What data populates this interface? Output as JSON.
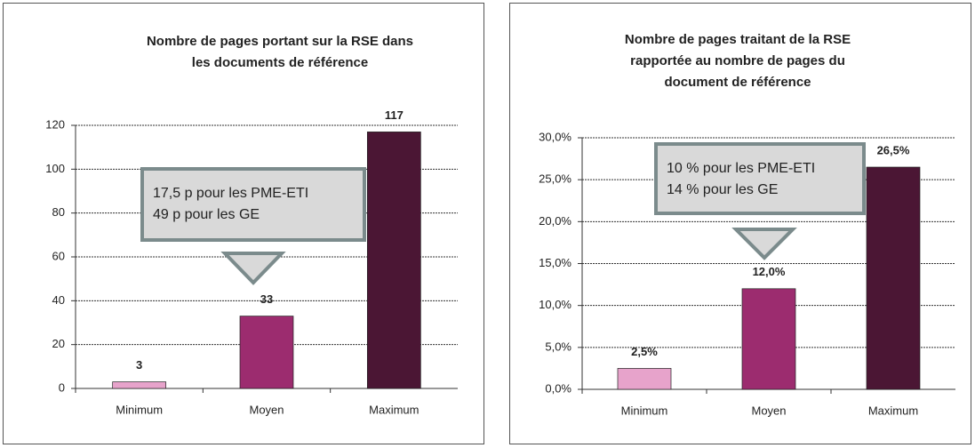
{
  "chart_data": [
    {
      "type": "bar",
      "title": [
        "Nombre de pages portant sur la RSE dans",
        "les documents de référence"
      ],
      "categories": [
        "Minimum",
        "Moyen",
        "Maximum"
      ],
      "values": [
        3,
        33,
        117
      ],
      "colors": [
        "#e7a3cb",
        "#9c2c6f",
        "#4b1634"
      ],
      "ylim": [
        0,
        120
      ],
      "yticks": [
        0,
        20,
        40,
        60,
        80,
        100,
        120
      ],
      "grid": true,
      "annotation": [
        "17,5 p pour les PME-ETI",
        "49 p pour les GE"
      ]
    },
    {
      "type": "bar",
      "title": [
        "Nombre de pages traitant de la RSE",
        "rapportée au nombre de pages du",
        "document de référence"
      ],
      "categories": [
        "Minimum",
        "Moyen",
        "Maximum"
      ],
      "values": [
        2.5,
        12.0,
        26.5
      ],
      "value_labels": [
        "2,5%",
        "12,0%",
        "26,5%"
      ],
      "colors": [
        "#e7a3cb",
        "#9c2c6f",
        "#4b1634"
      ],
      "ylim": [
        0,
        30
      ],
      "yticks": [
        {
          "value": 0,
          "label": "0,0%"
        },
        {
          "value": 5,
          "label": "5,0%"
        },
        {
          "value": 10,
          "label": "10,0%"
        },
        {
          "value": 15,
          "label": "15,0%"
        },
        {
          "value": 20,
          "label": "20,0%"
        },
        {
          "value": 25,
          "label": "25,0%"
        },
        {
          "value": 30,
          "label": "30,0%"
        }
      ],
      "grid": true,
      "annotation": [
        "10 % pour les PME-ETI",
        "14 % pour les GE"
      ]
    }
  ]
}
